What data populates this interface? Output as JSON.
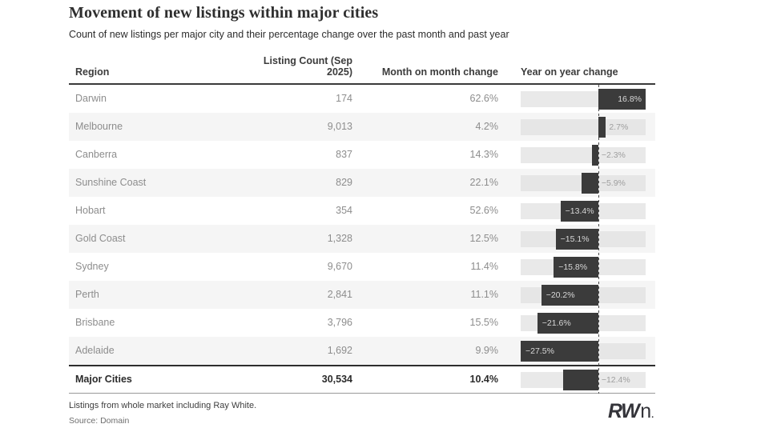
{
  "header": {
    "title": "Movement of new listings within major cities",
    "subtitle": "Count of new listings per major city and their percentage change over the past month and past year"
  },
  "table": {
    "columns": [
      "Region",
      "Listing Count (Sep 2025)",
      "Month on month change",
      "Year on year change"
    ],
    "rows": [
      {
        "region": "Darwin",
        "count": "174",
        "mom": "62.6%",
        "yoy": 16.8,
        "yoy_label": "16.8%"
      },
      {
        "region": "Melbourne",
        "count": "9,013",
        "mom": "4.2%",
        "yoy": 2.7,
        "yoy_label": "2.7%"
      },
      {
        "region": "Canberra",
        "count": "837",
        "mom": "14.3%",
        "yoy": -2.3,
        "yoy_label": "−2.3%"
      },
      {
        "region": "Sunshine Coast",
        "count": "829",
        "mom": "22.1%",
        "yoy": -5.9,
        "yoy_label": "−5.9%"
      },
      {
        "region": "Hobart",
        "count": "354",
        "mom": "52.6%",
        "yoy": -13.4,
        "yoy_label": "−13.4%"
      },
      {
        "region": "Gold Coast",
        "count": "1,328",
        "mom": "12.5%",
        "yoy": -15.1,
        "yoy_label": "−15.1%"
      },
      {
        "region": "Sydney",
        "count": "9,670",
        "mom": "11.4%",
        "yoy": -15.8,
        "yoy_label": "−15.8%"
      },
      {
        "region": "Perth",
        "count": "2,841",
        "mom": "11.1%",
        "yoy": -20.2,
        "yoy_label": "−20.2%"
      },
      {
        "region": "Brisbane",
        "count": "3,796",
        "mom": "15.5%",
        "yoy": -21.6,
        "yoy_label": "−21.6%"
      },
      {
        "region": "Adelaide",
        "count": "1,692",
        "mom": "9.9%",
        "yoy": -27.5,
        "yoy_label": "−27.5%"
      }
    ],
    "total": {
      "region": "Major Cities",
      "count": "30,534",
      "mom": "10.4%",
      "yoy": -12.4,
      "yoy_label": "−12.4%"
    }
  },
  "chart_data": {
    "type": "bar",
    "orientation": "horizontal",
    "title": "Movement of new listings within major cities",
    "subtitle": "Count of new listings per major city and their percentage change over the past month and past year",
    "categories": [
      "Darwin",
      "Melbourne",
      "Canberra",
      "Sunshine Coast",
      "Hobart",
      "Gold Coast",
      "Sydney",
      "Perth",
      "Brisbane",
      "Adelaide",
      "Major Cities"
    ],
    "series": [
      {
        "name": "Listing Count (Sep 2025)",
        "values": [
          174,
          9013,
          837,
          829,
          354,
          1328,
          9670,
          2841,
          3796,
          1692,
          30534
        ]
      },
      {
        "name": "Month on month change (%)",
        "values": [
          62.6,
          4.2,
          14.3,
          22.1,
          52.6,
          12.5,
          11.4,
          11.1,
          15.5,
          9.9,
          10.4
        ]
      },
      {
        "name": "Year on year change (%)",
        "values": [
          16.8,
          2.7,
          -2.3,
          -5.9,
          -13.4,
          -15.1,
          -15.8,
          -20.2,
          -21.6,
          -27.5,
          -12.4
        ]
      }
    ],
    "bar_column": "Year on year change",
    "axis": {
      "min": -27.5,
      "max": 16.8
    },
    "zero_line": true,
    "grid": false,
    "legend_position": "none"
  },
  "colors": {
    "bar": "#3b3b3b",
    "track": "#e9e9e9",
    "row_alt_bg": "#f5f5f5",
    "label_inside": "#d8d8d8",
    "label_outside": "#9e9e9e",
    "header_rule": "#3a3a3a"
  },
  "footer": {
    "note": "Listings from whole market including Ray White.",
    "source": "Source: Domain",
    "logo_bold": "RW",
    "logo_light": "n",
    "logo_dot": "."
  }
}
